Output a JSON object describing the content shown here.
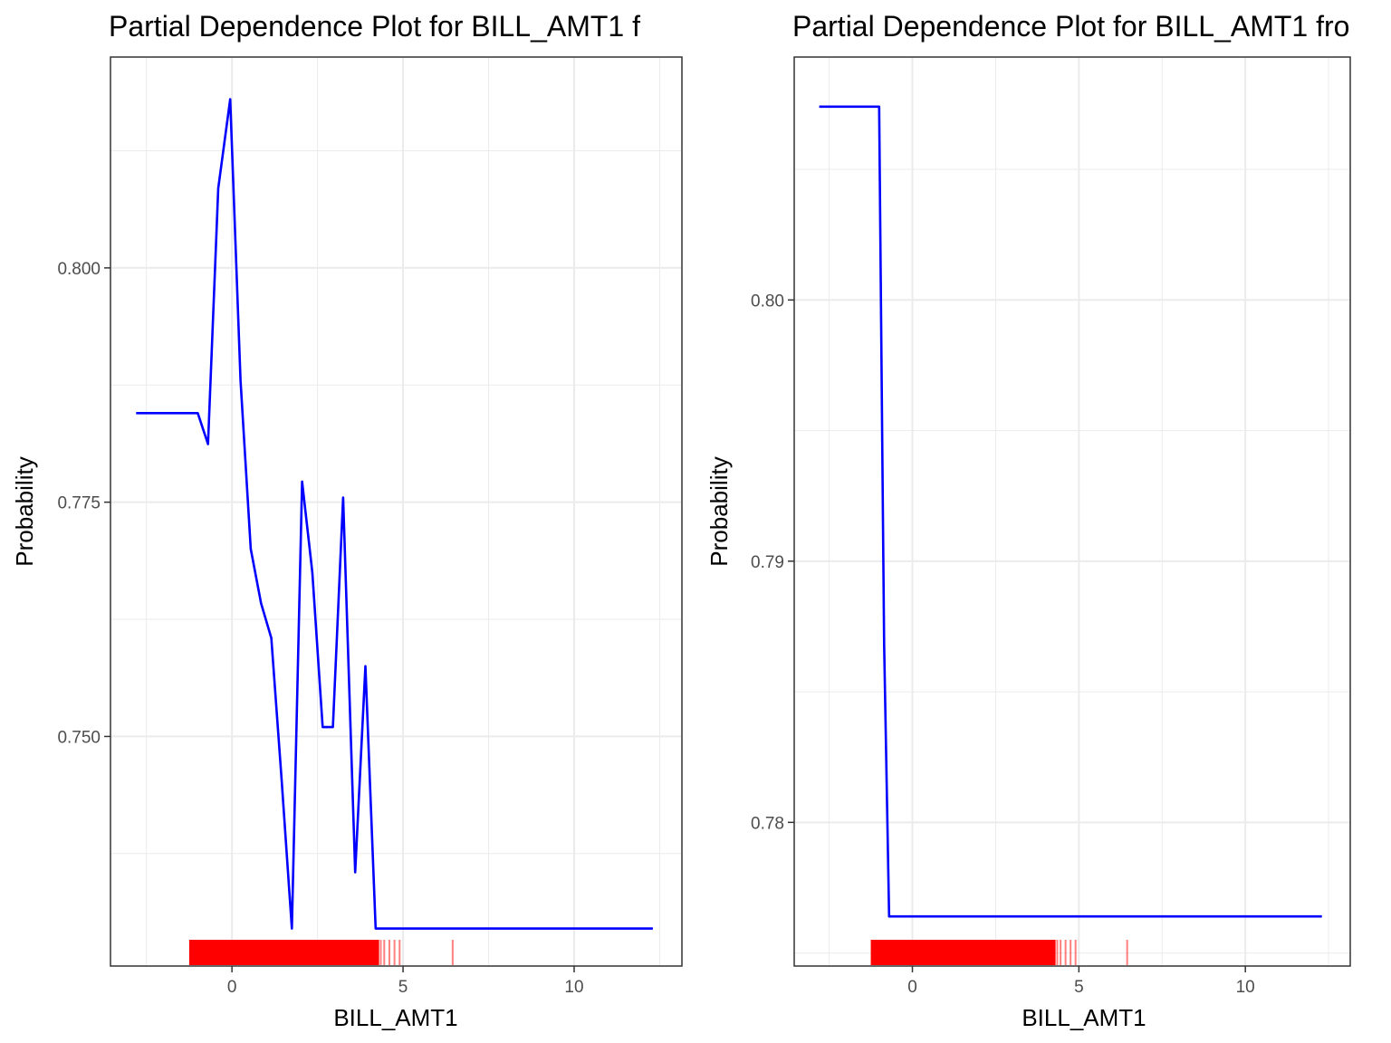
{
  "chart_data": [
    {
      "type": "line",
      "title": "Partial Dependence Plot for BILL_AMT1 f",
      "xlabel": "BILL_AMT1",
      "ylabel": "Probability",
      "xlim": [
        -3.55,
        13.15
      ],
      "ylim": [
        0.7255,
        0.8225
      ],
      "xticks": [
        0,
        5,
        10
      ],
      "xtick_labels": [
        "0",
        "5",
        "10"
      ],
      "yticks": [
        0.75,
        0.775,
        0.8
      ],
      "ytick_labels": [
        "0.750",
        "0.775",
        "0.800"
      ],
      "grid": true,
      "series": [
        {
          "x": [
            -2.8,
            -1.0,
            -0.7,
            -0.4,
            -0.05,
            0.25,
            0.55,
            0.85,
            1.15,
            1.45,
            1.75,
            2.05,
            2.35,
            2.65,
            2.95,
            3.25,
            3.6,
            3.9,
            4.2,
            12.3
          ],
          "y": [
            0.7845,
            0.7845,
            0.7812,
            0.8085,
            0.818,
            0.788,
            0.77,
            0.7642,
            0.7605,
            0.7455,
            0.7295,
            0.7772,
            0.7675,
            0.751,
            0.751,
            0.7755,
            0.7355,
            0.7575,
            0.7295,
            0.7295
          ],
          "color": "#0000ff"
        }
      ],
      "rug": {
        "color": "#ff0000",
        "dense_range": [
          -1.25,
          4.3
        ],
        "x": [
          4.35,
          4.45,
          4.6,
          4.75,
          4.9,
          6.45
        ]
      }
    },
    {
      "type": "line",
      "title": "Partial Dependence Plot for BILL_AMT1 fro",
      "xlabel": "BILL_AMT1",
      "ylabel": "Probability",
      "xlim": [
        -3.55,
        13.15
      ],
      "ylim": [
        0.7745,
        0.8093
      ],
      "xticks": [
        0,
        5,
        10
      ],
      "xtick_labels": [
        "0",
        "5",
        "10"
      ],
      "yticks": [
        0.78,
        0.79,
        0.8
      ],
      "ytick_labels": [
        "0.78",
        "0.79",
        "0.80"
      ],
      "grid": true,
      "series": [
        {
          "x": [
            -2.8,
            -1.0,
            -0.9,
            -0.85,
            -0.7,
            -0.65,
            12.3
          ],
          "y": [
            0.8074,
            0.8074,
            0.7938,
            0.7868,
            0.7764,
            0.7764,
            0.7764
          ],
          "color": "#0000ff"
        }
      ],
      "rug": {
        "color": "#ff0000",
        "dense_range": [
          -1.25,
          4.3
        ],
        "x": [
          4.35,
          4.45,
          4.6,
          4.75,
          4.9,
          6.45
        ]
      }
    }
  ]
}
